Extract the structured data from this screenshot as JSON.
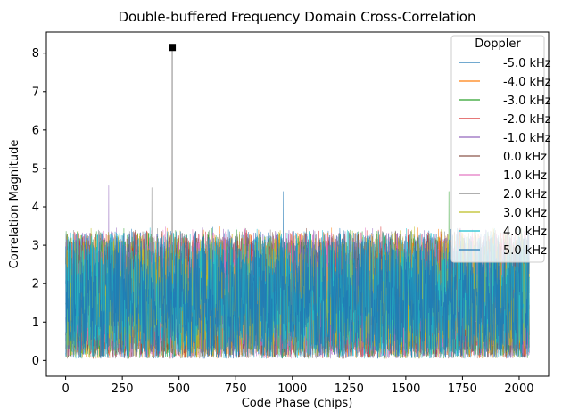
{
  "chart_data": {
    "type": "line",
    "title": "Double-buffered Frequency Domain Cross-Correlation",
    "xlabel": "Code Phase (chips)",
    "ylabel": "Correlation Magnitude",
    "xlim": [
      -85,
      2130
    ],
    "ylim": [
      -0.41,
      8.55
    ],
    "xticks": [
      0,
      250,
      500,
      750,
      1000,
      1250,
      1500,
      1750,
      2000
    ],
    "yticks": [
      0,
      1,
      2,
      3,
      4,
      5,
      6,
      7,
      8
    ],
    "n_points": 2046,
    "grid": false,
    "legend": {
      "title": "Doppler",
      "placement": "top-right"
    },
    "series": [
      {
        "name": "-5.0 kHz",
        "color": "#1f77b4"
      },
      {
        "name": "-4.0 kHz",
        "color": "#ff7f0e"
      },
      {
        "name": "-3.0 kHz",
        "color": "#2ca02c"
      },
      {
        "name": "-2.0 kHz",
        "color": "#d62728"
      },
      {
        "name": "-1.0 kHz",
        "color": "#9467bd"
      },
      {
        "name": "0.0 kHz",
        "color": "#8c564b"
      },
      {
        "name": "1.0 kHz",
        "color": "#e377c2"
      },
      {
        "name": "2.0 kHz",
        "color": "#7f7f7f"
      },
      {
        "name": "3.0 kHz",
        "color": "#bcbd22"
      },
      {
        "name": "4.0 kHz",
        "color": "#17becf"
      },
      {
        "name": "5.0 kHz",
        "color": "#1f77b4"
      }
    ],
    "noise": {
      "typical_range": [
        0.1,
        3.3
      ],
      "max_spikes": [
        4.55,
        4.5,
        4.4,
        4.4
      ]
    },
    "peak": {
      "x": 470,
      "y": 8.15,
      "series": "0.0 kHz",
      "marker": "square",
      "marker_color": "#000000"
    }
  }
}
